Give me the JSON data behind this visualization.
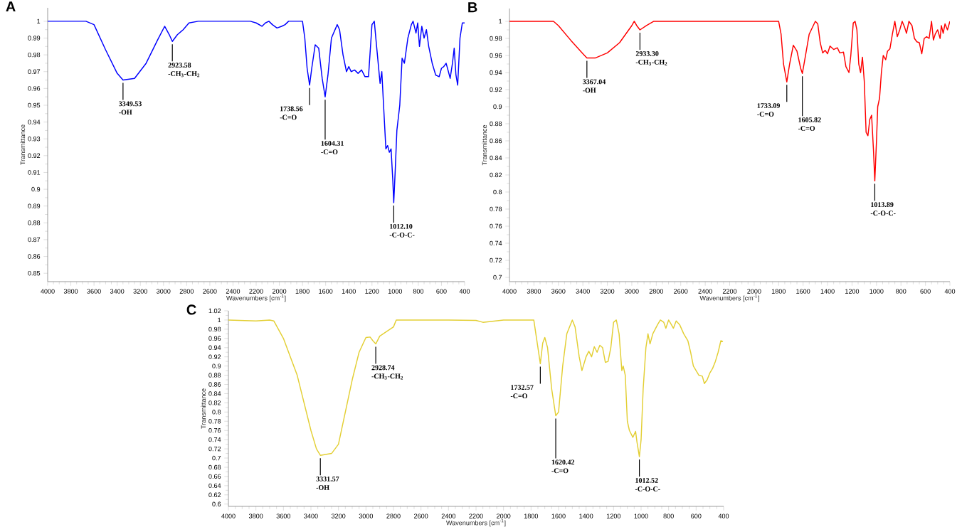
{
  "chart_data": [
    {
      "type": "line",
      "title": "A",
      "xlabel": "Wavenumbers [cm$^{-1}$]",
      "ylabel": "Transmittance",
      "xlim": [
        4000,
        400
      ],
      "ylim": [
        0.845,
        1.008
      ],
      "xticks": [
        4000,
        3800,
        3600,
        3400,
        3200,
        3000,
        2800,
        2600,
        2400,
        2200,
        2000,
        1800,
        1600,
        1400,
        1200,
        1000,
        800,
        600,
        400
      ],
      "yticks": [
        0.85,
        0.86,
        0.87,
        0.88,
        0.89,
        0.9,
        0.91,
        0.92,
        0.93,
        0.94,
        0.95,
        0.96,
        0.97,
        0.98,
        0.99,
        1
      ],
      "x": [
        4000,
        3670,
        3600,
        3500,
        3400,
        3349.53,
        3250,
        3150,
        3050,
        2990,
        2950,
        2923.58,
        2880,
        2830,
        2780,
        2700,
        2250,
        2200,
        2150,
        2120,
        2090,
        2060,
        2020,
        1980,
        1950,
        1920,
        1800,
        1780,
        1760,
        1738.56,
        1720,
        1690,
        1660,
        1630,
        1604.31,
        1580,
        1550,
        1500,
        1480,
        1450,
        1420,
        1400,
        1380,
        1350,
        1320,
        1290,
        1260,
        1230,
        1200,
        1180,
        1160,
        1130,
        1115,
        1100,
        1080,
        1065,
        1050,
        1035,
        1020,
        1012.1,
        1000,
        985,
        960,
        940,
        920,
        890,
        860,
        845,
        820,
        805,
        790,
        770,
        750,
        730,
        710,
        680,
        650,
        620,
        600,
        580,
        560,
        540,
        525,
        505,
        490,
        475,
        460,
        440,
        420,
        400
      ],
      "series": [
        {
          "color": "#0000ff",
          "values": [
            1.0,
            1.0,
            0.998,
            0.983,
            0.969,
            0.965,
            0.966,
            0.975,
            0.989,
            0.997,
            0.992,
            0.988,
            0.992,
            0.995,
            0.999,
            1.0,
            1.0,
            0.999,
            0.997,
            0.999,
            1.0,
            0.998,
            0.996,
            0.997,
            0.998,
            1.0,
            1.0,
            0.99,
            0.972,
            0.962,
            0.972,
            0.986,
            0.984,
            0.966,
            0.955,
            0.968,
            0.99,
            0.998,
            0.995,
            0.98,
            0.97,
            0.973,
            0.97,
            0.971,
            0.969,
            0.971,
            0.967,
            0.967,
            0.998,
            1.0,
            0.985,
            0.963,
            0.97,
            0.95,
            0.924,
            0.926,
            0.922,
            0.924,
            0.905,
            0.892,
            0.91,
            0.935,
            0.95,
            0.978,
            0.975,
            0.99,
            0.998,
            1.0,
            0.993,
            0.999,
            0.985,
            0.997,
            0.99,
            0.995,
            0.985,
            0.975,
            0.968,
            0.967,
            0.972,
            0.973,
            0.975,
            0.97,
            0.966,
            0.975,
            0.984,
            0.968,
            0.962,
            0.99,
            0.999,
            0.999
          ]
        }
      ],
      "annotations": [
        {
          "text": "3349.53 -OH",
          "x": 3349.53,
          "y": 0.965
        },
        {
          "text": "2923.58 -CH$_{3}$-CH$_{2}$",
          "x": 2923.58,
          "y": 0.988
        },
        {
          "text": "1738.56 -C=O",
          "x": 1738.56,
          "y": 0.962
        },
        {
          "text": "1604.31 -C=O",
          "x": 1604.31,
          "y": 0.955
        },
        {
          "text": "1012.10 -C-O-C-",
          "x": 1012.1,
          "y": 0.892
        }
      ]
    },
    {
      "type": "line",
      "title": "B",
      "xlabel": "Wavenumbers [cm$^{-1}$]",
      "ylabel": "Transmittance",
      "xlim": [
        4000,
        400
      ],
      "ylim": [
        0.695,
        1.015
      ],
      "xticks": [
        4000,
        3800,
        3600,
        3400,
        3200,
        3000,
        2800,
        2600,
        2400,
        2200,
        2000,
        1800,
        1600,
        1400,
        1200,
        1000,
        800,
        600,
        400
      ],
      "yticks": [
        0.7,
        0.72,
        0.74,
        0.76,
        0.78,
        0.8,
        0.82,
        0.84,
        0.86,
        0.88,
        0.9,
        0.92,
        0.94,
        0.96,
        0.98,
        1
      ],
      "x": [
        4000,
        3640,
        3600,
        3500,
        3400,
        3367.04,
        3300,
        3200,
        3100,
        3000,
        2980,
        2960,
        2933.3,
        2880,
        2820,
        2700,
        1800,
        1780,
        1760,
        1733.09,
        1710,
        1680,
        1650,
        1620,
        1605.82,
        1580,
        1550,
        1500,
        1480,
        1460,
        1440,
        1420,
        1400,
        1380,
        1350,
        1320,
        1300,
        1270,
        1250,
        1225,
        1210,
        1190,
        1175,
        1160,
        1145,
        1130,
        1115,
        1100,
        1085,
        1070,
        1055,
        1040,
        1025,
        1013.89,
        1000,
        990,
        975,
        960,
        945,
        925,
        910,
        890,
        870,
        850,
        830,
        810,
        790,
        770,
        755,
        735,
        710,
        690,
        670,
        650,
        630,
        610,
        590,
        570,
        550,
        535,
        520,
        500,
        480,
        470,
        455,
        440,
        420,
        400
      ],
      "series": [
        {
          "color": "#ff0000",
          "values": [
            1.0,
            1.0,
            0.995,
            0.978,
            0.962,
            0.957,
            0.957,
            0.963,
            0.975,
            0.995,
            1.0,
            0.995,
            0.99,
            0.995,
            1.0,
            1.0,
            1.0,
            0.985,
            0.95,
            0.929,
            0.95,
            0.972,
            0.965,
            0.945,
            0.939,
            0.96,
            0.985,
            1.0,
            0.997,
            0.975,
            0.963,
            0.966,
            0.962,
            0.971,
            0.967,
            0.969,
            0.963,
            0.964,
            0.947,
            0.94,
            0.96,
            0.998,
            1.0,
            0.99,
            0.95,
            0.94,
            0.958,
            0.93,
            0.87,
            0.866,
            0.885,
            0.89,
            0.85,
            0.813,
            0.86,
            0.9,
            0.91,
            0.94,
            0.96,
            0.955,
            0.965,
            0.968,
            0.985,
            1.0,
            0.982,
            0.99,
            1.0,
            0.993,
            0.986,
            1.0,
            0.995,
            0.98,
            0.976,
            0.975,
            0.962,
            0.98,
            0.982,
            0.98,
            1.0,
            0.978,
            0.985,
            0.99,
            0.98,
            0.995,
            0.986,
            0.997,
            0.99,
            1.0
          ]
        }
      ],
      "annotations": [
        {
          "text": "3367.04 -OH",
          "x": 3367.04,
          "y": 0.957
        },
        {
          "text": "2933.30 -CH$_{3}$-CH$_{2}$",
          "x": 2933.3,
          "y": 0.99
        },
        {
          "text": "1733.09 -C=O",
          "x": 1733.09,
          "y": 0.929
        },
        {
          "text": "1605.82 -C=O",
          "x": 1605.82,
          "y": 0.939
        },
        {
          "text": "1013.89 -C-O-C-",
          "x": 1013.89,
          "y": 0.813
        }
      ]
    },
    {
      "type": "line",
      "title": "C",
      "xlabel": "Wavenumbers [cm$^{-1}$]",
      "ylabel": "Transmittance",
      "xlim": [
        4000,
        400
      ],
      "ylim": [
        0.595,
        1.02
      ],
      "xticks": [
        4000,
        3800,
        3600,
        3400,
        3200,
        3000,
        2800,
        2600,
        2400,
        2200,
        2000,
        1800,
        1600,
        1400,
        1200,
        1000,
        800,
        600,
        400
      ],
      "yticks": [
        0.6,
        0.62,
        0.64,
        0.66,
        0.68,
        0.7,
        0.72,
        0.74,
        0.76,
        0.78,
        0.8,
        0.82,
        0.84,
        0.86,
        0.88,
        0.9,
        0.92,
        0.94,
        0.96,
        0.98,
        1,
        1.02
      ],
      "x": [
        4000,
        3800,
        3700,
        3670,
        3600,
        3500,
        3400,
        3360,
        3331.57,
        3250,
        3200,
        3150,
        3100,
        3050,
        3000,
        2970,
        2950,
        2928.74,
        2900,
        2850,
        2800,
        2780,
        2400,
        2200,
        2150,
        2000,
        1780,
        1760,
        1732.57,
        1715,
        1700,
        1680,
        1650,
        1620.42,
        1600,
        1570,
        1540,
        1500,
        1480,
        1450,
        1430,
        1400,
        1380,
        1360,
        1340,
        1320,
        1300,
        1280,
        1260,
        1240,
        1220,
        1200,
        1180,
        1160,
        1140,
        1130,
        1115,
        1100,
        1085,
        1060,
        1040,
        1030,
        1012.52,
        1000,
        985,
        965,
        950,
        935,
        915,
        880,
        860,
        835,
        820,
        800,
        780,
        765,
        745,
        720,
        690,
        660,
        640,
        620,
        600,
        580,
        555,
        540,
        520,
        500,
        480,
        460,
        440,
        420,
        405
      ],
      "series": [
        {
          "color": "#e3cf35",
          "values": [
            1.0,
            0.998,
            1.0,
            0.998,
            0.96,
            0.88,
            0.76,
            0.72,
            0.706,
            0.71,
            0.73,
            0.8,
            0.87,
            0.93,
            0.962,
            0.963,
            0.955,
            0.948,
            0.965,
            0.975,
            0.985,
            1.0,
            1.0,
            0.999,
            0.995,
            1.0,
            1.0,
            0.96,
            0.905,
            0.95,
            0.962,
            0.94,
            0.85,
            0.792,
            0.8,
            0.9,
            0.97,
            1.0,
            0.985,
            0.92,
            0.89,
            0.92,
            0.932,
            0.92,
            0.942,
            0.93,
            0.945,
            0.94,
            0.908,
            0.91,
            0.94,
            0.995,
            1.0,
            0.97,
            0.89,
            0.9,
            0.88,
            0.78,
            0.76,
            0.745,
            0.758,
            0.735,
            0.703,
            0.74,
            0.85,
            0.94,
            0.97,
            0.948,
            0.97,
            0.99,
            1.0,
            0.995,
            0.982,
            1.0,
            0.99,
            0.982,
            0.998,
            0.99,
            0.97,
            0.955,
            0.93,
            0.9,
            0.89,
            0.88,
            0.878,
            0.862,
            0.87,
            0.885,
            0.895,
            0.91,
            0.93,
            0.955,
            0.953
          ]
        }
      ],
      "annotations": [
        {
          "text": "3331.57 -OH",
          "x": 3331.57,
          "y": 0.706
        },
        {
          "text": "2928.74 -CH$_{3}$-CH$_{2}$",
          "x": 2928.74,
          "y": 0.948
        },
        {
          "text": "1732.57 -C=O",
          "x": 1732.57,
          "y": 0.905
        },
        {
          "text": "1620.42 -C=O",
          "x": 1620.42,
          "y": 0.792
        },
        {
          "text": "1012.52 -C-O-C-",
          "x": 1012.52,
          "y": 0.703
        }
      ]
    }
  ]
}
